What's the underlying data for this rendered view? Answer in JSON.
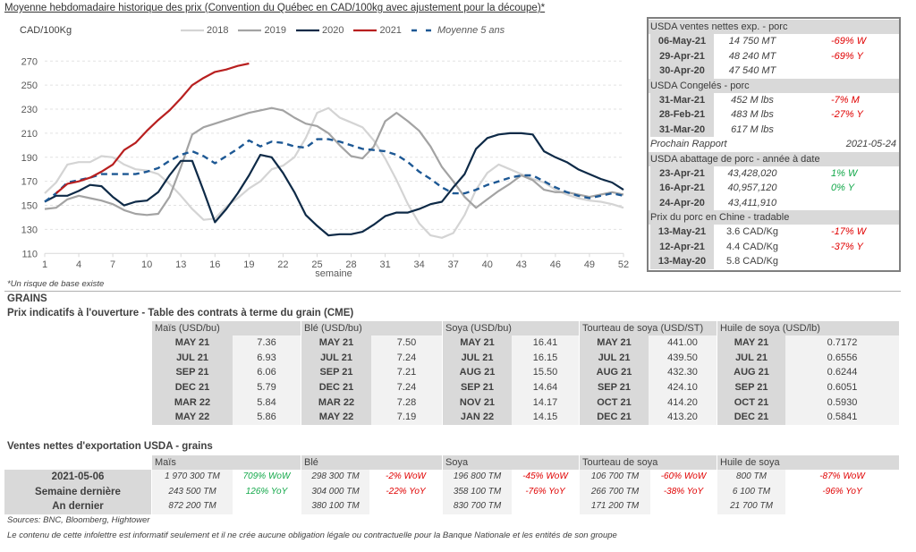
{
  "chart_data": {
    "type": "line",
    "title": "Moyenne hebdomadaire historique des prix (Convention du Québec en CAD/100kg avec ajustement pour la découpe)*",
    "ylabel": "CAD/100Kg",
    "xlabel": "semaine",
    "xlim": [
      1,
      52
    ],
    "ylim": [
      110,
      270
    ],
    "x_ticks": [
      1,
      4,
      7,
      10,
      13,
      16,
      19,
      22,
      25,
      28,
      31,
      34,
      37,
      40,
      43,
      46,
      49,
      52
    ],
    "y_ticks": [
      110,
      130,
      150,
      170,
      190,
      210,
      230,
      250,
      270
    ],
    "grid": "horizontal dashed",
    "legend_position": "top-center",
    "footnote": "*Un risque de base existe",
    "series": [
      {
        "name": "2018",
        "color": "#d4d4d4",
        "dashed": false,
        "start_week": 1,
        "values": [
          160,
          169,
          184,
          186,
          186,
          191,
          190,
          184,
          180,
          179,
          176,
          168,
          158,
          147,
          138,
          139,
          149,
          156,
          164,
          170,
          180,
          183,
          190,
          206,
          227,
          231,
          223,
          219,
          215,
          204,
          189,
          171,
          151,
          135,
          125,
          123,
          127,
          142,
          163,
          177,
          184,
          180,
          176,
          172,
          169,
          163,
          159,
          156,
          154,
          153,
          151,
          148
        ]
      },
      {
        "name": "2019",
        "color": "#a3a3a3",
        "dashed": false,
        "start_week": 1,
        "values": [
          147,
          148,
          155,
          158,
          156,
          154,
          151,
          146,
          143,
          142,
          143,
          157,
          182,
          209,
          215,
          218,
          221,
          224,
          227,
          229,
          231,
          229,
          223,
          218,
          216,
          210,
          200,
          191,
          189,
          199,
          220,
          227,
          220,
          212,
          199,
          182,
          170,
          157,
          148,
          155,
          162,
          168,
          175,
          171,
          163,
          161,
          161,
          159,
          157,
          159,
          161,
          159
        ]
      },
      {
        "name": "2020",
        "color": "#0e2a47",
        "dashed": false,
        "start_week": 1,
        "values": [
          153,
          158,
          158,
          162,
          167,
          166,
          157,
          150,
          153,
          154,
          161,
          175,
          187,
          187,
          162,
          136,
          147,
          160,
          175,
          192,
          190,
          177,
          161,
          142,
          133,
          125,
          126,
          126,
          128,
          134,
          141,
          144,
          144,
          147,
          151,
          153,
          165,
          176,
          197,
          206,
          209,
          210,
          210,
          209,
          195,
          190,
          186,
          180,
          176,
          172,
          169,
          163
        ]
      },
      {
        "name": "2021",
        "color": "#b81f1f",
        "dashed": false,
        "start_week": 2,
        "values": [
          160,
          168,
          170,
          173,
          178,
          184,
          196,
          202,
          212,
          221,
          229,
          239,
          250,
          256,
          261,
          263,
          266,
          268
        ]
      },
      {
        "name": "Moyenne 5 ans",
        "color": "#1d5894",
        "dashed": true,
        "start_week": 1,
        "values": [
          153,
          160,
          169,
          171,
          173,
          176,
          176,
          176,
          176,
          178,
          181,
          187,
          192,
          195,
          191,
          185,
          191,
          197,
          204,
          199,
          203,
          202,
          199,
          198,
          205,
          205,
          203,
          200,
          197,
          196,
          195,
          192,
          186,
          178,
          172,
          165,
          160,
          160,
          163,
          167,
          170,
          173,
          175,
          175,
          170,
          165,
          161,
          158,
          156,
          158,
          160,
          158
        ]
      }
    ]
  },
  "colors": {
    "down": "#e00000",
    "up": "#13a84a"
  },
  "pork_box": {
    "sections": [
      {
        "title": "USDA ventes nettes exp. - porc",
        "rows": [
          {
            "date": "06-May-21",
            "value": "14 750  MT",
            "change": "-69% W",
            "trend": "down"
          },
          {
            "date": "29-Apr-21",
            "value": "48 240  MT",
            "change": "-69% Y",
            "trend": "down"
          },
          {
            "date": "30-Apr-20",
            "value": "47 540  MT",
            "change": "",
            "trend": ""
          }
        ]
      },
      {
        "title": "USDA Congelés - porc",
        "rows": [
          {
            "date": "31-Mar-21",
            "value": "452 M lbs",
            "change": "-7% M",
            "trend": "down"
          },
          {
            "date": "28-Feb-21",
            "value": "483 M lbs",
            "change": "-27% Y",
            "trend": "down"
          },
          {
            "date": "31-Mar-20",
            "value": "617 M lbs",
            "change": "",
            "trend": ""
          }
        ]
      },
      {
        "title": "USDA abattage de porc - année à date",
        "rows": [
          {
            "date": "23-Apr-21",
            "value": "43,428,020",
            "change": "1% W",
            "trend": "up"
          },
          {
            "date": "16-Apr-21",
            "value": "40,957,120",
            "change": "0% Y",
            "trend": "up"
          },
          {
            "date": "24-Apr-20",
            "value": "43,411,910",
            "change": "",
            "trend": ""
          }
        ]
      },
      {
        "title": "Prix du porc en Chine - tradable",
        "rows": [
          {
            "date": "13-May-21",
            "value": "3.6 CAD/Kg",
            "change": "-17% W",
            "trend": "down"
          },
          {
            "date": "12-Apr-21",
            "value": "4.4 CAD/Kg",
            "change": "-37% Y",
            "trend": "down"
          },
          {
            "date": "13-May-20",
            "value": "5.8 CAD/Kg",
            "change": "",
            "trend": ""
          }
        ]
      }
    ],
    "next_report": {
      "label": "Prochain Rapport",
      "date": "2021-05-24"
    }
  },
  "grains": {
    "section_label": "GRAINS",
    "futures": {
      "title": "Prix indicatifs à l'ouverture - Table des contrats à terme du grain (CME)",
      "groups": [
        {
          "name": "Maïs (USD/bu)",
          "rows": [
            {
              "contract": "MAY 21",
              "price": "7.36"
            },
            {
              "contract": "JUL 21",
              "price": "6.93"
            },
            {
              "contract": "SEP 21",
              "price": "6.06"
            },
            {
              "contract": "DEC 21",
              "price": "5.79"
            },
            {
              "contract": "MAR 22",
              "price": "5.84"
            },
            {
              "contract": "MAY 22",
              "price": "5.86"
            }
          ]
        },
        {
          "name": "Blé (USD/bu)",
          "rows": [
            {
              "contract": "MAY 21",
              "price": "7.50"
            },
            {
              "contract": "JUL 21",
              "price": "7.24"
            },
            {
              "contract": "SEP 21",
              "price": "7.21"
            },
            {
              "contract": "DEC 21",
              "price": "7.24"
            },
            {
              "contract": "MAR 22",
              "price": "7.28"
            },
            {
              "contract": "MAY 22",
              "price": "7.19"
            }
          ]
        },
        {
          "name": "Soya (USD/bu)",
          "rows": [
            {
              "contract": "MAY 21",
              "price": "16.41"
            },
            {
              "contract": "JUL 21",
              "price": "16.15"
            },
            {
              "contract": "AUG 21",
              "price": "15.50"
            },
            {
              "contract": "SEP 21",
              "price": "14.64"
            },
            {
              "contract": "NOV 21",
              "price": "14.17"
            },
            {
              "contract": "JAN 22",
              "price": "14.15"
            }
          ]
        },
        {
          "name": "Tourteau de soya (USD/ST)",
          "rows": [
            {
              "contract": "MAY 21",
              "price": "441.00"
            },
            {
              "contract": "JUL 21",
              "price": "439.50"
            },
            {
              "contract": "AUG 21",
              "price": "432.30"
            },
            {
              "contract": "SEP 21",
              "price": "424.10"
            },
            {
              "contract": "OCT 21",
              "price": "414.20"
            },
            {
              "contract": "DEC 21",
              "price": "413.20"
            }
          ]
        },
        {
          "name": "Huile de soya (USD/lb)",
          "rows": [
            {
              "contract": "MAY 21",
              "price": "0.7172"
            },
            {
              "contract": "JUL 21",
              "price": "0.6556"
            },
            {
              "contract": "AUG 21",
              "price": "0.6244"
            },
            {
              "contract": "SEP 21",
              "price": "0.6051"
            },
            {
              "contract": "OCT 21",
              "price": "0.5930"
            },
            {
              "contract": "DEC 21",
              "price": "0.5841"
            }
          ]
        }
      ]
    },
    "exports": {
      "title": "Ventes nettes d'exportation USDA - grains",
      "row_labels": [
        "2021-05-06",
        "Semaine dernière",
        "An dernier"
      ],
      "groups": [
        {
          "name": "Maïs",
          "rows": [
            {
              "value": "1 970 300 TM",
              "change": "709% WoW",
              "trend": "up"
            },
            {
              "value": "243 500 TM",
              "change": "126% YoY",
              "trend": "up"
            },
            {
              "value": "872 200 TM",
              "change": "",
              "trend": ""
            }
          ]
        },
        {
          "name": "Blé",
          "rows": [
            {
              "value": "298 300 TM",
              "change": "-2% WoW",
              "trend": "down"
            },
            {
              "value": "304 000 TM",
              "change": "-22% YoY",
              "trend": "down"
            },
            {
              "value": "380 100 TM",
              "change": "",
              "trend": ""
            }
          ]
        },
        {
          "name": "Soya",
          "rows": [
            {
              "value": "196 800 TM",
              "change": "-45% WoW",
              "trend": "down"
            },
            {
              "value": "358 100 TM",
              "change": "-76% YoY",
              "trend": "down"
            },
            {
              "value": "830 700 TM",
              "change": "",
              "trend": ""
            }
          ]
        },
        {
          "name": "Tourteau de soya",
          "rows": [
            {
              "value": "106 700 TM",
              "change": "-60% WoW",
              "trend": "down"
            },
            {
              "value": "266 700 TM",
              "change": "-38% YoY",
              "trend": "down"
            },
            {
              "value": "171 200 TM",
              "change": "",
              "trend": ""
            }
          ]
        },
        {
          "name": "Huile de soya",
          "rows": [
            {
              "value": "800 TM",
              "change": "-87% WoW",
              "trend": "down"
            },
            {
              "value": "6 100 TM",
              "change": "-96% YoY",
              "trend": "down"
            },
            {
              "value": "21 700 TM",
              "change": "",
              "trend": ""
            }
          ]
        }
      ]
    }
  },
  "footer": {
    "sources": "Sources: BNC, Bloomberg, Hightower",
    "disclaimer": "Le contenu de cette infolettre est informatif seulement et il ne crée aucune obligation légale ou contractuelle pour la Banque Nationale et les entités de son groupe"
  }
}
